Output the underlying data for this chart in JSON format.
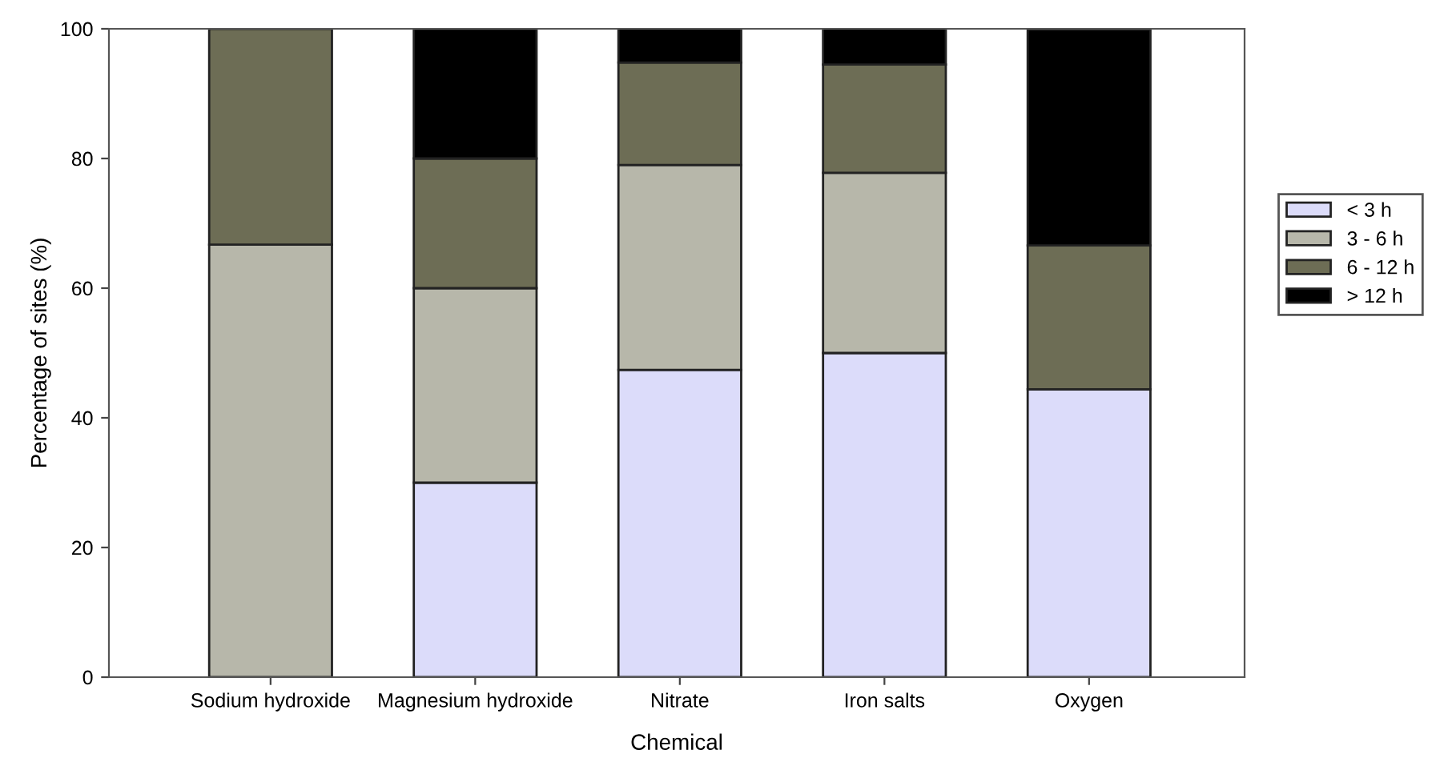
{
  "chart_data": {
    "type": "bar",
    "stacked": true,
    "xlabel": "Chemical",
    "ylabel": "Percentage of sites (%)",
    "categories": [
      "Sodium hydroxide",
      "Magnesium hydroxide",
      "Nitrate",
      "Iron salts",
      "Oxygen"
    ],
    "series": [
      {
        "name": "< 3 h",
        "color": "#dcdcfa",
        "values": [
          0,
          30,
          47.4,
          50,
          44.4
        ]
      },
      {
        "name": "3 - 6 h",
        "color": "#b7b7aa",
        "values": [
          66.7,
          30,
          31.6,
          27.8,
          0
        ]
      },
      {
        "name": "6 - 12 h",
        "color": "#6d6d55",
        "values": [
          33.3,
          20,
          15.8,
          16.7,
          22.2
        ]
      },
      {
        "name": "> 12 h",
        "color": "#000000",
        "values": [
          0,
          20,
          5.3,
          5.6,
          33.3
        ]
      }
    ],
    "ylim": [
      0,
      100
    ],
    "yticks": [
      0,
      20,
      40,
      60,
      80,
      100
    ],
    "grid": false,
    "legend": "right"
  }
}
